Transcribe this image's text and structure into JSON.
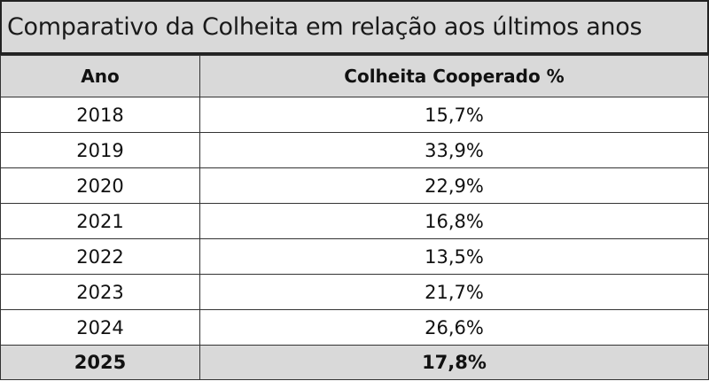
{
  "title": "Comparativo da Colheita em relação aos últimos anos",
  "table": {
    "headers": [
      "Ano",
      "Colheita Cooperado %"
    ],
    "rows": [
      [
        "2018",
        "15,7%"
      ],
      [
        "2019",
        "33,9%"
      ],
      [
        "2020",
        "22,9%"
      ],
      [
        "2021",
        "16,8%"
      ],
      [
        "2022",
        "13,5%"
      ],
      [
        "2023",
        "21,7%"
      ],
      [
        "2024",
        "26,6%"
      ],
      [
        "2025",
        "17,8%"
      ]
    ]
  }
}
